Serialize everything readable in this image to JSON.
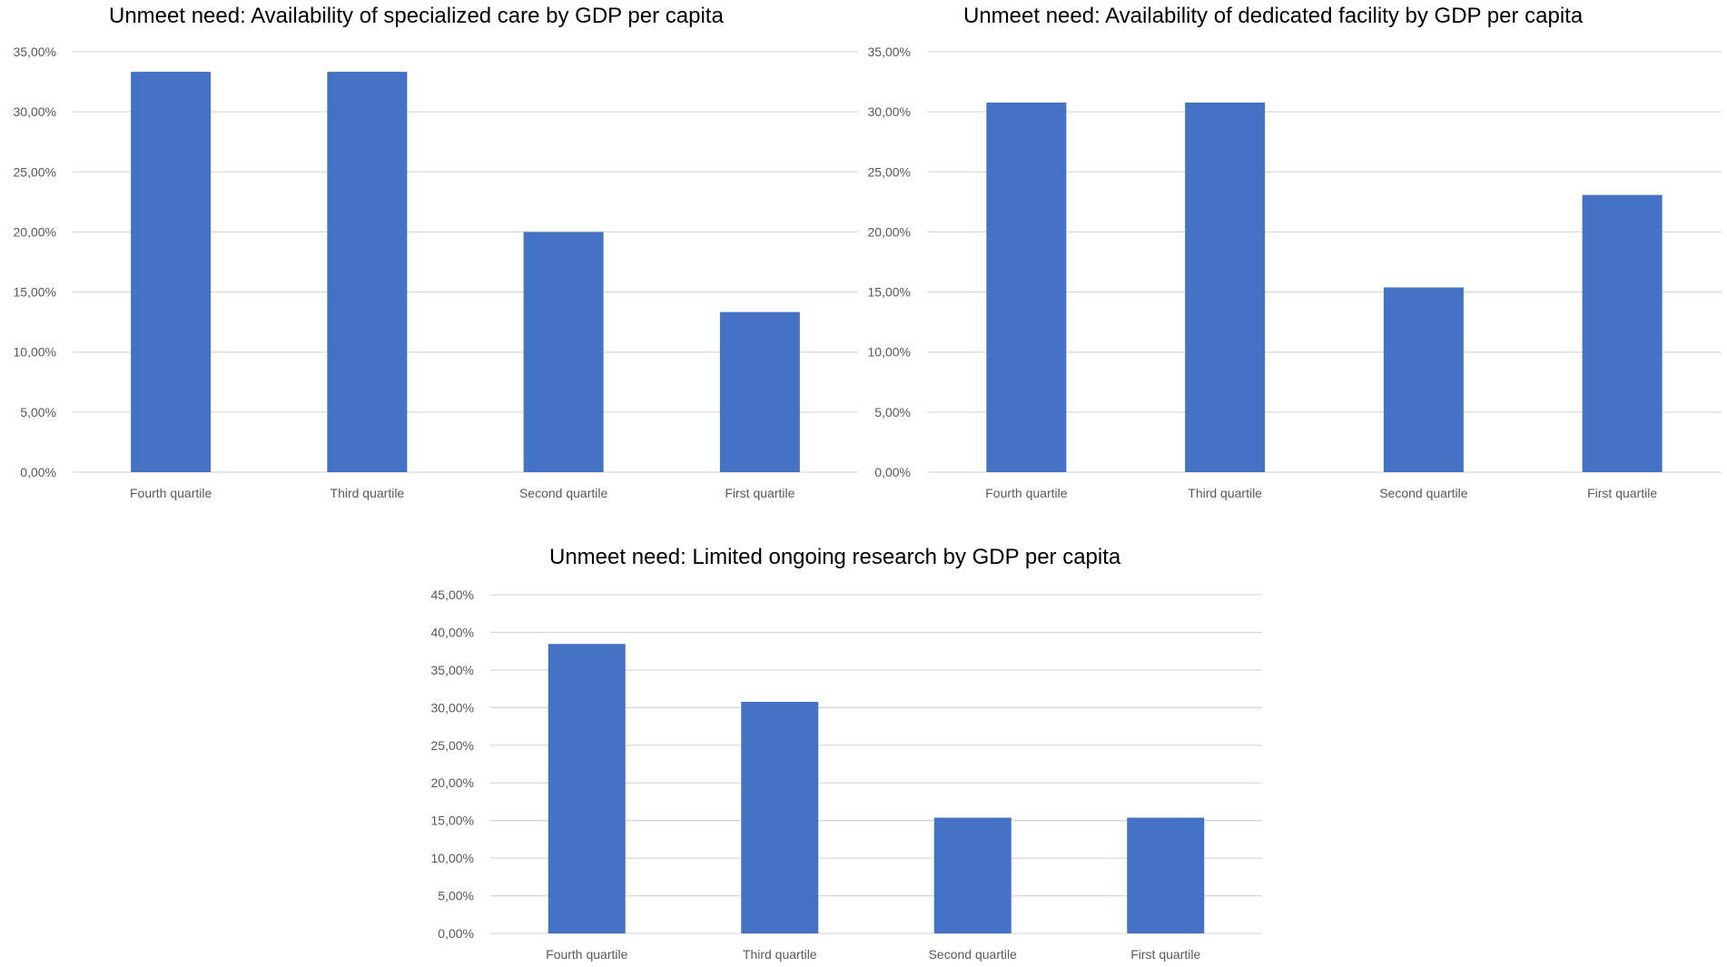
{
  "chart_data": [
    {
      "type": "bar",
      "title": "Unmeet need: Availability of specialized care  by GDP per capita",
      "categories": [
        "Fourth quartile",
        "Third quartile",
        "Second quartile",
        "First quartile"
      ],
      "values": [
        33.33,
        33.33,
        20.0,
        13.33
      ],
      "yticks": [
        "0,00%",
        "5,00%",
        "10,00%",
        "15,00%",
        "20,00%",
        "25,00%",
        "30,00%",
        "35,00%"
      ],
      "ylim": [
        0,
        35
      ],
      "xlabel": "",
      "ylabel": "",
      "grid": true,
      "bar_color": "#4472C4"
    },
    {
      "type": "bar",
      "title": "Unmeet need: Availability of dedicated facility  by GDP per capita",
      "categories": [
        "Fourth quartile",
        "Third quartile",
        "Second quartile",
        "First quartile"
      ],
      "values": [
        30.77,
        30.77,
        15.38,
        23.08
      ],
      "yticks": [
        "0,00%",
        "5,00%",
        "10,00%",
        "15,00%",
        "20,00%",
        "25,00%",
        "30,00%",
        "35,00%"
      ],
      "ylim": [
        0,
        35
      ],
      "xlabel": "",
      "ylabel": "",
      "grid": true,
      "bar_color": "#4472C4"
    },
    {
      "type": "bar",
      "title": "Unmeet need: Limited ongoing research by GDP per capita",
      "categories": [
        "Fourth quartile",
        "Third quartile",
        "Second quartile",
        "First quartile"
      ],
      "values": [
        38.46,
        30.77,
        15.38,
        15.38
      ],
      "yticks": [
        "0,00%",
        "5,00%",
        "10,00%",
        "15,00%",
        "20,00%",
        "25,00%",
        "30,00%",
        "35,00%",
        "40,00%",
        "45,00%"
      ],
      "ylim": [
        0,
        45
      ],
      "xlabel": "",
      "ylabel": "",
      "grid": true,
      "bar_color": "#4472C4"
    }
  ]
}
